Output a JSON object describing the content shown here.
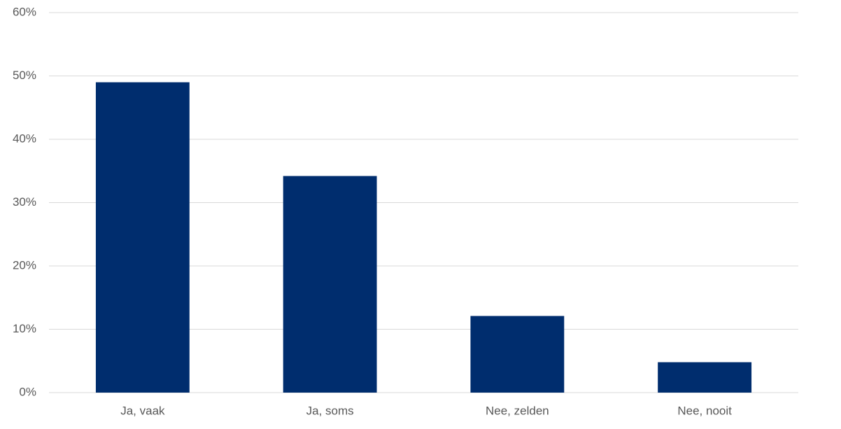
{
  "chart_data": {
    "type": "bar",
    "categories": [
      "Ja, vaak",
      "Ja, soms",
      "Nee, zelden",
      "Nee, nooit"
    ],
    "values": [
      49,
      34.2,
      12.1,
      4.8
    ],
    "color": "#002d6e",
    "ylim": [
      0,
      60
    ],
    "yticks": [
      {
        "value": 0,
        "label": "0%"
      },
      {
        "value": 10,
        "label": "10%"
      },
      {
        "value": 20,
        "label": "20%"
      },
      {
        "value": 30,
        "label": "30%"
      },
      {
        "value": 40,
        "label": "40%"
      },
      {
        "value": 50,
        "label": "50%"
      },
      {
        "value": 60,
        "label": "60%"
      }
    ],
    "grid": true
  }
}
